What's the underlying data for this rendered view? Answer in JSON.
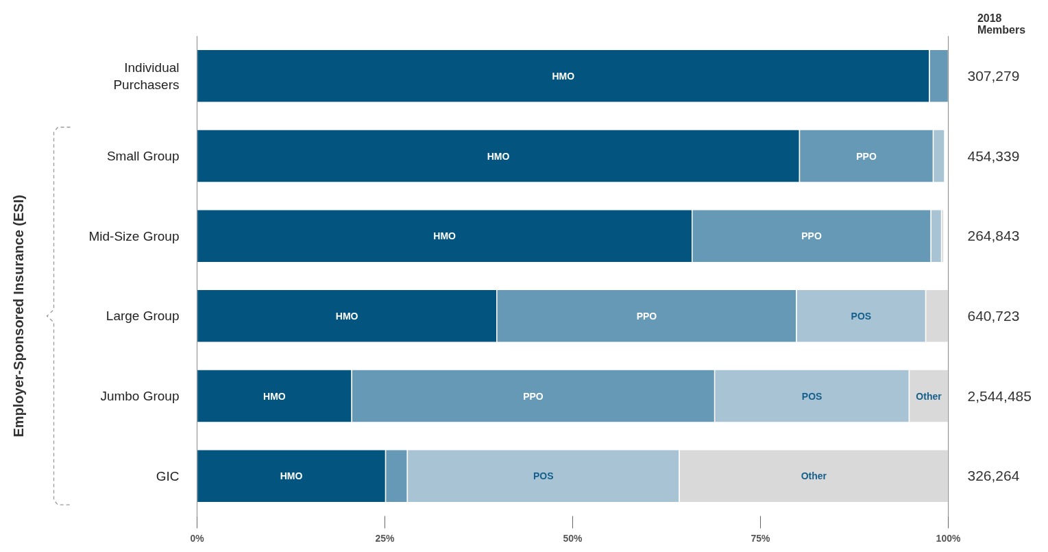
{
  "chart_data": {
    "type": "bar",
    "orientation": "horizontal",
    "stacked": true,
    "categories": [
      "Individual Purchasers",
      "Small Group",
      "Mid-Size Group",
      "Large Group",
      "Jumbo Group",
      "GIC"
    ],
    "series": [
      {
        "name": "HMO",
        "color": "#03557f",
        "values": [
          97.5,
          80.2,
          65.9,
          39.9,
          20.6,
          25.1
        ]
      },
      {
        "name": "PPO",
        "color": "#6699b6",
        "values": [
          2.5,
          17.8,
          31.8,
          39.9,
          48.3,
          2.9
        ]
      },
      {
        "name": "POS",
        "color": "#a7c3d4",
        "values": [
          null,
          1.5,
          1.4,
          17.2,
          25.9,
          36.2
        ]
      },
      {
        "name": "Other",
        "color": "#d9d9d9",
        "values": [
          null,
          null,
          0.3,
          3.0,
          5.2,
          35.8
        ]
      }
    ],
    "xlim": [
      0,
      100
    ],
    "xticks": [
      {
        "value": 0,
        "label": "0%"
      },
      {
        "value": 25,
        "label": "25%"
      },
      {
        "value": 50,
        "label": "50%"
      },
      {
        "value": 75,
        "label": "75%"
      },
      {
        "value": 100,
        "label": "100%"
      }
    ],
    "ylabel": "Employer-Sponsored Insurance (ESI)",
    "annotations": [
      "2018 Members",
      "307,279",
      "454,339",
      "264,843",
      "640,723",
      "2,544,485",
      "326,264"
    ]
  }
}
